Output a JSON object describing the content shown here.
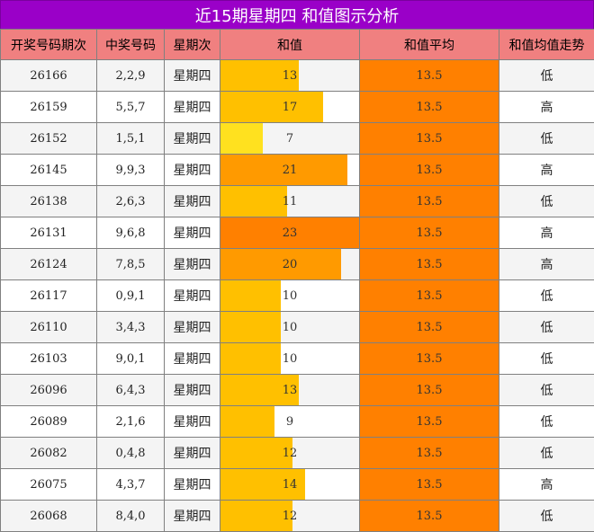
{
  "title": "近15期星期四 和值图示分析",
  "headers": [
    "开奖号码期次",
    "中奖号码",
    "星期次",
    "和值",
    "和值平均",
    "和值均值走势"
  ],
  "colors": {
    "title_bg": "#9a00c8",
    "header_bg": "#f08080",
    "avg_bg": "#ff8000",
    "bar_low": "#ffe11f",
    "bar_mid": "#ffc000",
    "bar_high": "#ff9a00",
    "bar_top": "#ff8000"
  },
  "sum_scale_max": 23,
  "rows": [
    {
      "issue": "26166",
      "numbers": "2,2,9",
      "weekday": "星期四",
      "sum": 13,
      "avg": "13.5",
      "trend": "低"
    },
    {
      "issue": "26159",
      "numbers": "5,5,7",
      "weekday": "星期四",
      "sum": 17,
      "avg": "13.5",
      "trend": "高"
    },
    {
      "issue": "26152",
      "numbers": "1,5,1",
      "weekday": "星期四",
      "sum": 7,
      "avg": "13.5",
      "trend": "低"
    },
    {
      "issue": "26145",
      "numbers": "9,9,3",
      "weekday": "星期四",
      "sum": 21,
      "avg": "13.5",
      "trend": "高"
    },
    {
      "issue": "26138",
      "numbers": "2,6,3",
      "weekday": "星期四",
      "sum": 11,
      "avg": "13.5",
      "trend": "低"
    },
    {
      "issue": "26131",
      "numbers": "9,6,8",
      "weekday": "星期四",
      "sum": 23,
      "avg": "13.5",
      "trend": "高"
    },
    {
      "issue": "26124",
      "numbers": "7,8,5",
      "weekday": "星期四",
      "sum": 20,
      "avg": "13.5",
      "trend": "高"
    },
    {
      "issue": "26117",
      "numbers": "0,9,1",
      "weekday": "星期四",
      "sum": 10,
      "avg": "13.5",
      "trend": "低"
    },
    {
      "issue": "26110",
      "numbers": "3,4,3",
      "weekday": "星期四",
      "sum": 10,
      "avg": "13.5",
      "trend": "低"
    },
    {
      "issue": "26103",
      "numbers": "9,0,1",
      "weekday": "星期四",
      "sum": 10,
      "avg": "13.5",
      "trend": "低"
    },
    {
      "issue": "26096",
      "numbers": "6,4,3",
      "weekday": "星期四",
      "sum": 13,
      "avg": "13.5",
      "trend": "低"
    },
    {
      "issue": "26089",
      "numbers": "2,1,6",
      "weekday": "星期四",
      "sum": 9,
      "avg": "13.5",
      "trend": "低"
    },
    {
      "issue": "26082",
      "numbers": "0,4,8",
      "weekday": "星期四",
      "sum": 12,
      "avg": "13.5",
      "trend": "低"
    },
    {
      "issue": "26075",
      "numbers": "4,3,7",
      "weekday": "星期四",
      "sum": 14,
      "avg": "13.5",
      "trend": "高"
    },
    {
      "issue": "26068",
      "numbers": "8,4,0",
      "weekday": "星期四",
      "sum": 12,
      "avg": "13.5",
      "trend": "低"
    }
  ],
  "chart_data": {
    "type": "table",
    "title": "近15期星期四 和值图示分析",
    "columns": [
      "开奖号码期次",
      "中奖号码",
      "星期次",
      "和值",
      "和值平均",
      "和值均值走势"
    ],
    "x": [
      "26166",
      "26159",
      "26152",
      "26145",
      "26138",
      "26131",
      "26124",
      "26117",
      "26110",
      "26103",
      "26096",
      "26089",
      "26082",
      "26075",
      "26068"
    ],
    "series": [
      {
        "name": "和值",
        "values": [
          13,
          17,
          7,
          21,
          11,
          23,
          20,
          10,
          10,
          10,
          13,
          9,
          12,
          14,
          12
        ]
      },
      {
        "name": "和值平均",
        "values": [
          13.5,
          13.5,
          13.5,
          13.5,
          13.5,
          13.5,
          13.5,
          13.5,
          13.5,
          13.5,
          13.5,
          13.5,
          13.5,
          13.5,
          13.5
        ]
      }
    ]
  }
}
